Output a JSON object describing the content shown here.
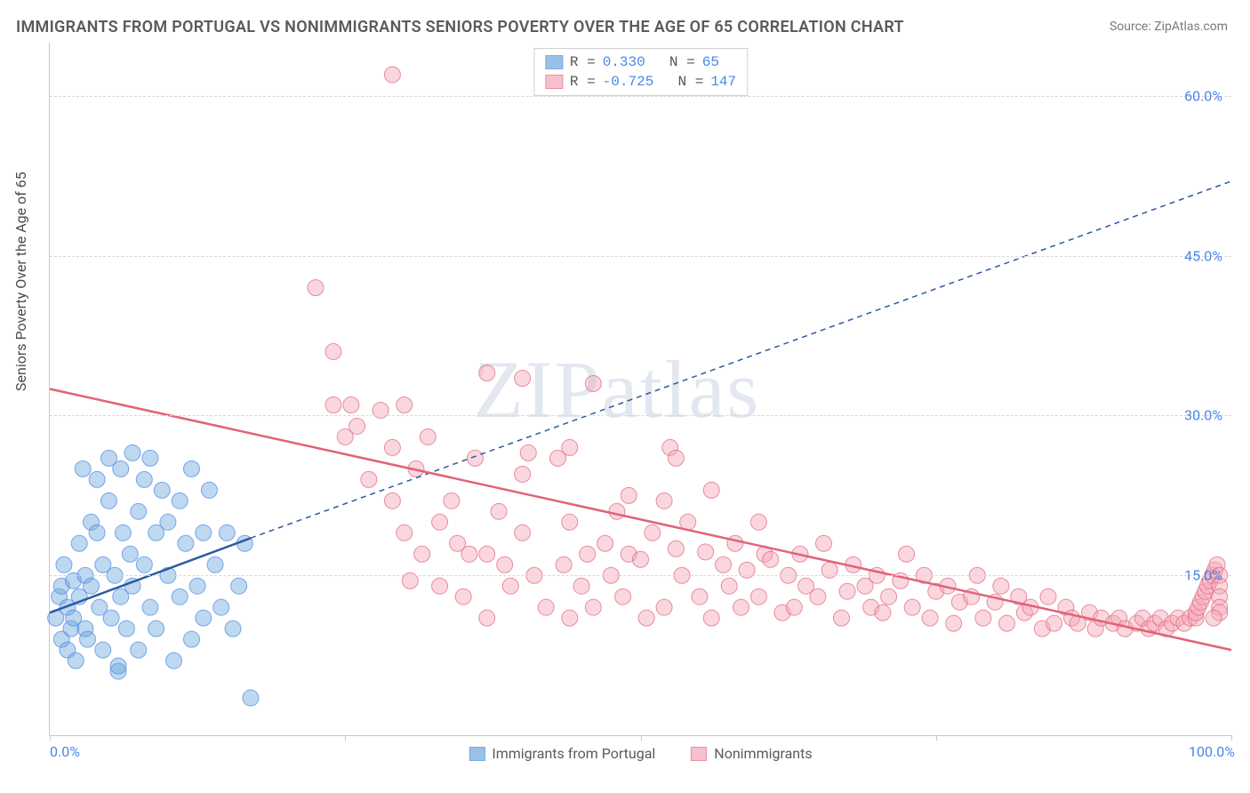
{
  "title": "IMMIGRANTS FROM PORTUGAL VS NONIMMIGRANTS SENIORS POVERTY OVER THE AGE OF 65 CORRELATION CHART",
  "source": "Source: ZipAtlas.com",
  "ylabel": "Seniors Poverty Over the Age of 65",
  "watermark": "ZIPatlas",
  "chart": {
    "type": "scatter",
    "xlim": [
      0,
      100
    ],
    "ylim": [
      0,
      65
    ],
    "x_ticks": [
      0,
      25,
      50,
      75,
      100
    ],
    "x_tick_labels": [
      "0.0%",
      "",
      "",
      "",
      "100.0%"
    ],
    "y_ticks": [
      15,
      30,
      45,
      60
    ],
    "y_tick_labels": [
      "15.0%",
      "30.0%",
      "45.0%",
      "60.0%"
    ],
    "grid_color": "#d8d8d8",
    "background_color": "#ffffff",
    "axis_color": "#c8c8c8",
    "tick_label_color": "#4a86e8",
    "label_fontsize": 16,
    "title_fontsize": 18,
    "marker_radius": 9,
    "marker_opacity": 0.45,
    "line_width_solid": 2.5,
    "line_width_dash": 1.5,
    "dash_pattern": "6,5"
  },
  "series": {
    "portugal": {
      "label": "Immigrants from Portugal",
      "color": "#6fa8dc",
      "border_color": "#4a86e8",
      "line_color": "#2c5aa0",
      "R": "0.330",
      "N": "65",
      "trend_solid": {
        "x1": 0,
        "y1": 11.5,
        "x2": 17,
        "y2": 18.5
      },
      "trend_dash": {
        "x1": 17,
        "y1": 18.5,
        "x2": 100,
        "y2": 52
      },
      "points": [
        [
          0.5,
          11
        ],
        [
          0.8,
          13
        ],
        [
          1,
          9
        ],
        [
          1,
          14
        ],
        [
          1.2,
          16
        ],
        [
          1.5,
          8
        ],
        [
          1.5,
          12
        ],
        [
          1.8,
          10
        ],
        [
          2,
          14.5
        ],
        [
          2,
          11
        ],
        [
          2.2,
          7
        ],
        [
          2.5,
          13
        ],
        [
          2.5,
          18
        ],
        [
          2.8,
          25
        ],
        [
          3,
          10
        ],
        [
          3,
          15
        ],
        [
          3.2,
          9
        ],
        [
          3.5,
          14
        ],
        [
          3.5,
          20
        ],
        [
          4,
          24
        ],
        [
          4,
          19
        ],
        [
          4.2,
          12
        ],
        [
          4.5,
          8
        ],
        [
          4.5,
          16
        ],
        [
          5,
          22
        ],
        [
          5,
          26
        ],
        [
          5.2,
          11
        ],
        [
          5.5,
          15
        ],
        [
          5.8,
          6
        ],
        [
          6,
          13
        ],
        [
          6,
          25
        ],
        [
          6.2,
          19
        ],
        [
          6.5,
          10
        ],
        [
          6.8,
          17
        ],
        [
          7,
          26.5
        ],
        [
          7,
          14
        ],
        [
          7.5,
          8
        ],
        [
          7.5,
          21
        ],
        [
          8,
          24
        ],
        [
          8,
          16
        ],
        [
          8.5,
          12
        ],
        [
          8.5,
          26
        ],
        [
          9,
          19
        ],
        [
          9,
          10
        ],
        [
          9.5,
          23
        ],
        [
          10,
          15
        ],
        [
          10,
          20
        ],
        [
          10.5,
          7
        ],
        [
          11,
          13
        ],
        [
          11,
          22
        ],
        [
          11.5,
          18
        ],
        [
          12,
          25
        ],
        [
          12,
          9
        ],
        [
          12.5,
          14
        ],
        [
          13,
          19
        ],
        [
          13,
          11
        ],
        [
          13.5,
          23
        ],
        [
          14,
          16
        ],
        [
          14.5,
          12
        ],
        [
          15,
          19
        ],
        [
          15.5,
          10
        ],
        [
          16,
          14
        ],
        [
          16.5,
          18
        ],
        [
          17,
          3.5
        ],
        [
          5.8,
          6.5
        ]
      ]
    },
    "nonimmigrants": {
      "label": "Nonimmigrants",
      "color": "#f4a6b8",
      "border_color": "#e06377",
      "line_color": "#e06377",
      "R": "-0.725",
      "N": "147",
      "trend_solid": {
        "x1": 0,
        "y1": 32.5,
        "x2": 100,
        "y2": 8
      },
      "trend_dash": null,
      "points": [
        [
          29,
          62
        ],
        [
          22.5,
          42
        ],
        [
          24,
          36
        ],
        [
          24,
          31
        ],
        [
          25,
          28
        ],
        [
          25.5,
          31
        ],
        [
          26,
          29
        ],
        [
          27,
          24
        ],
        [
          28,
          30.5
        ],
        [
          29,
          27
        ],
        [
          29,
          22
        ],
        [
          30,
          31
        ],
        [
          30,
          19
        ],
        [
          30.5,
          14.5
        ],
        [
          31,
          25
        ],
        [
          31.5,
          17
        ],
        [
          32,
          28
        ],
        [
          33,
          14
        ],
        [
          33,
          20
        ],
        [
          34,
          22
        ],
        [
          34.5,
          18
        ],
        [
          35,
          13
        ],
        [
          35.5,
          17
        ],
        [
          36,
          26
        ],
        [
          37,
          17
        ],
        [
          37,
          11
        ],
        [
          38,
          21
        ],
        [
          38.5,
          16
        ],
        [
          39,
          14
        ],
        [
          40,
          24.5
        ],
        [
          40,
          19
        ],
        [
          40.5,
          26.5
        ],
        [
          41,
          15
        ],
        [
          42,
          12
        ],
        [
          43,
          26
        ],
        [
          43.5,
          16
        ],
        [
          44,
          11
        ],
        [
          44,
          20
        ],
        [
          45,
          14
        ],
        [
          45.5,
          17
        ],
        [
          46,
          33
        ],
        [
          46,
          12
        ],
        [
          47,
          18
        ],
        [
          47.5,
          15
        ],
        [
          48,
          21
        ],
        [
          48.5,
          13
        ],
        [
          49,
          17
        ],
        [
          50,
          16.5
        ],
        [
          50.5,
          11
        ],
        [
          51,
          19
        ],
        [
          52,
          22
        ],
        [
          52.5,
          27
        ],
        [
          52,
          12
        ],
        [
          53,
          17.5
        ],
        [
          53.5,
          15
        ],
        [
          54,
          20
        ],
        [
          55,
          13
        ],
        [
          55.5,
          17.2
        ],
        [
          56,
          11
        ],
        [
          57,
          16
        ],
        [
          57.5,
          14
        ],
        [
          58,
          18
        ],
        [
          58.5,
          12
        ],
        [
          59,
          15.5
        ],
        [
          60,
          13
        ],
        [
          60.5,
          17
        ],
        [
          61,
          16.5
        ],
        [
          62,
          11.5
        ],
        [
          62.5,
          15
        ],
        [
          63,
          12
        ],
        [
          63.5,
          17
        ],
        [
          64,
          14
        ],
        [
          65,
          13
        ],
        [
          65.5,
          18
        ],
        [
          66,
          15.5
        ],
        [
          67,
          11
        ],
        [
          67.5,
          13.5
        ],
        [
          68,
          16
        ],
        [
          69,
          14
        ],
        [
          69.5,
          12
        ],
        [
          70,
          15
        ],
        [
          70.5,
          11.5
        ],
        [
          71,
          13
        ],
        [
          72,
          14.5
        ],
        [
          72.5,
          17
        ],
        [
          73,
          12
        ],
        [
          74,
          15
        ],
        [
          74.5,
          11
        ],
        [
          75,
          13.5
        ],
        [
          76,
          14
        ],
        [
          76.5,
          10.5
        ],
        [
          77,
          12.5
        ],
        [
          78,
          13
        ],
        [
          78.5,
          15
        ],
        [
          79,
          11
        ],
        [
          80,
          12.5
        ],
        [
          80.5,
          14
        ],
        [
          81,
          10.5
        ],
        [
          82,
          13
        ],
        [
          82.5,
          11.5
        ],
        [
          83,
          12
        ],
        [
          84,
          10
        ],
        [
          84.5,
          13
        ],
        [
          85,
          10.5
        ],
        [
          86,
          12
        ],
        [
          86.5,
          11
        ],
        [
          87,
          10.5
        ],
        [
          88,
          11.5
        ],
        [
          88.5,
          10
        ],
        [
          89,
          11
        ],
        [
          90,
          10.5
        ],
        [
          90.5,
          11
        ],
        [
          91,
          10
        ],
        [
          92,
          10.5
        ],
        [
          92.5,
          11
        ],
        [
          93,
          10
        ],
        [
          93.5,
          10.5
        ],
        [
          94,
          11
        ],
        [
          94.5,
          10
        ],
        [
          95,
          10.5
        ],
        [
          95.5,
          11
        ],
        [
          96,
          10.5
        ],
        [
          96.5,
          11
        ],
        [
          97,
          11
        ],
        [
          97,
          11.5
        ],
        [
          97.2,
          12
        ],
        [
          97.4,
          12.5
        ],
        [
          97.6,
          13
        ],
        [
          97.8,
          13.5
        ],
        [
          98,
          14
        ],
        [
          98.2,
          14.5
        ],
        [
          98.4,
          15
        ],
        [
          98.6,
          15.5
        ],
        [
          98.8,
          16
        ],
        [
          99,
          15
        ],
        [
          99,
          14
        ],
        [
          99,
          13
        ],
        [
          99,
          12
        ],
        [
          99,
          11.5
        ],
        [
          98.5,
          11
        ],
        [
          40,
          33.5
        ],
        [
          44,
          27
        ],
        [
          49,
          22.5
        ],
        [
          56,
          23
        ],
        [
          60,
          20
        ],
        [
          53,
          26
        ],
        [
          37,
          34
        ]
      ]
    }
  },
  "legend_bottom": [
    {
      "key": "portugal"
    },
    {
      "key": "nonimmigrants"
    }
  ]
}
